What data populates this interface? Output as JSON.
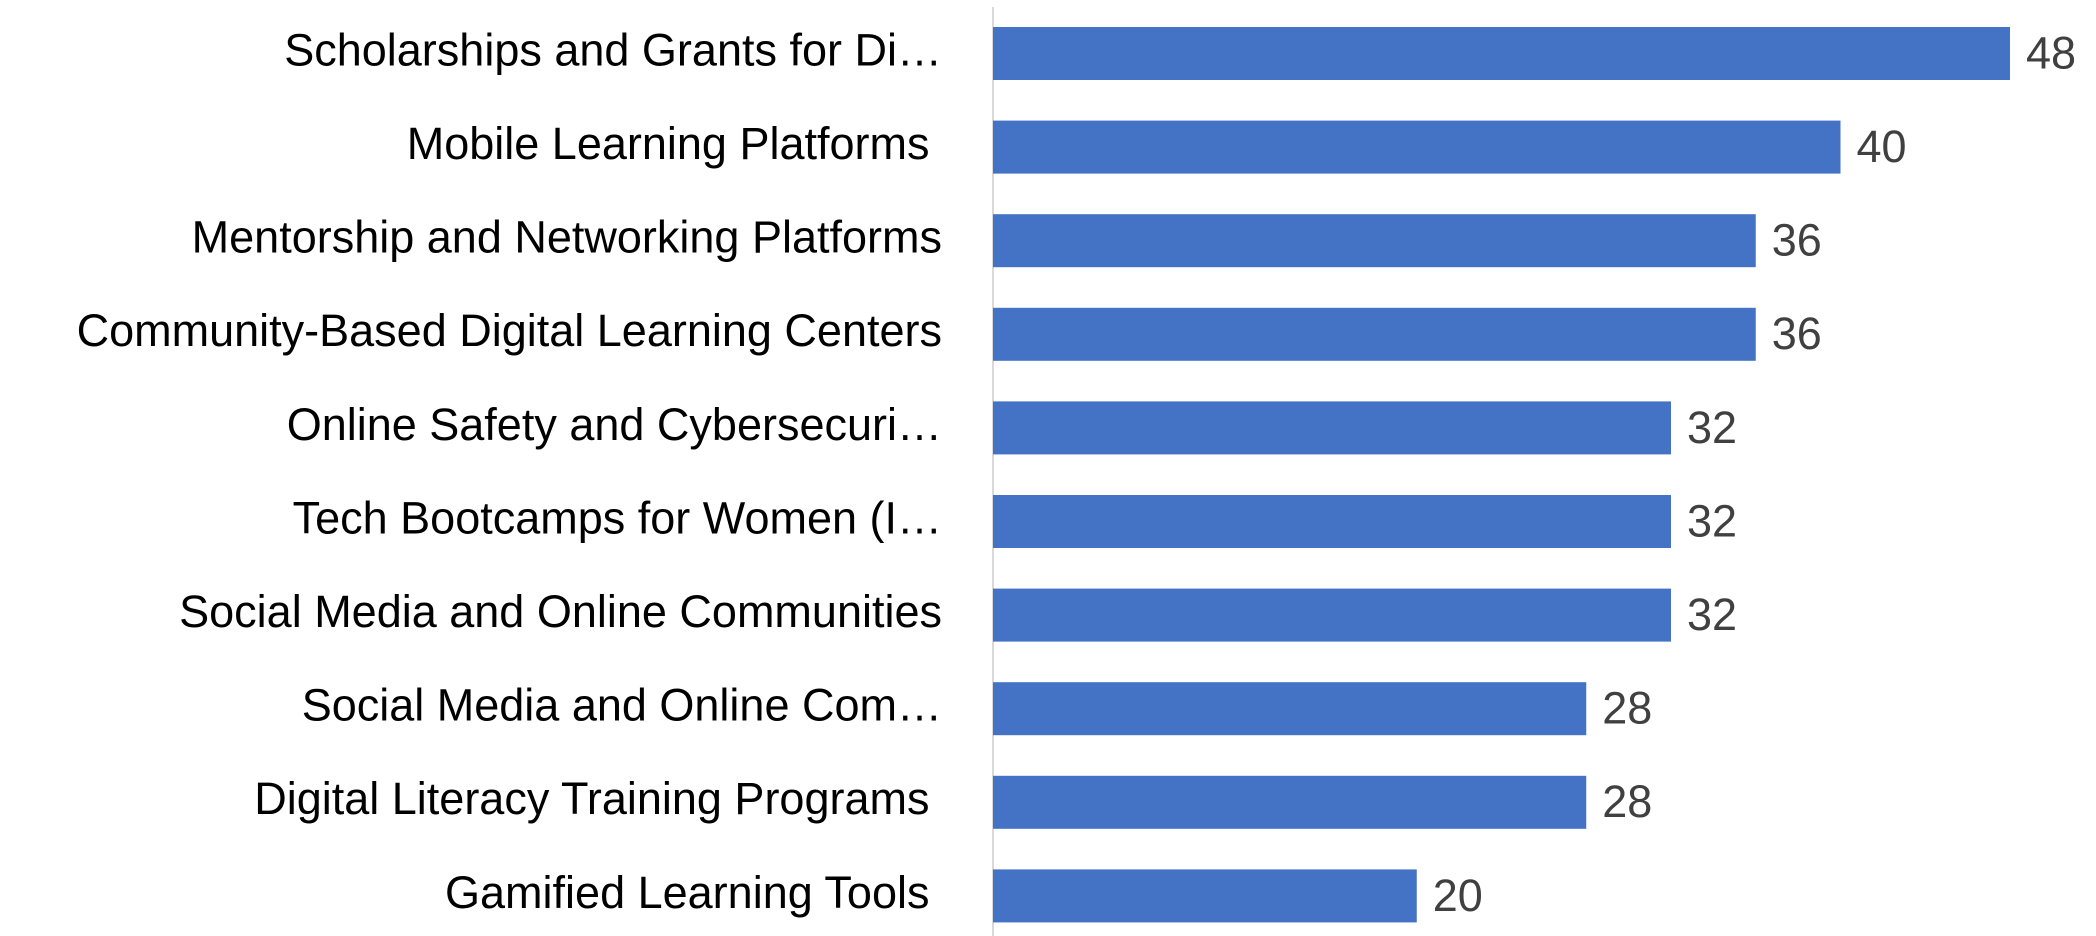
{
  "chart_data": {
    "type": "bar",
    "orientation": "horizontal",
    "color": "#4472c4",
    "categories": [
      "Scholarships and Grants for Di…",
      "Mobile Learning Platforms ",
      "Mentorship and Networking Platforms",
      "Community-Based Digital Learning Centers",
      "Online Safety and Cybersecuri…",
      "Tech Bootcamps for Women (I…",
      "Social Media and Online Communities",
      "Social Media and Online Com…",
      "Digital Literacy Training Programs ",
      "Gamified Learning Tools "
    ],
    "values": [
      48,
      40,
      36,
      36,
      32,
      32,
      32,
      28,
      28,
      20
    ]
  }
}
